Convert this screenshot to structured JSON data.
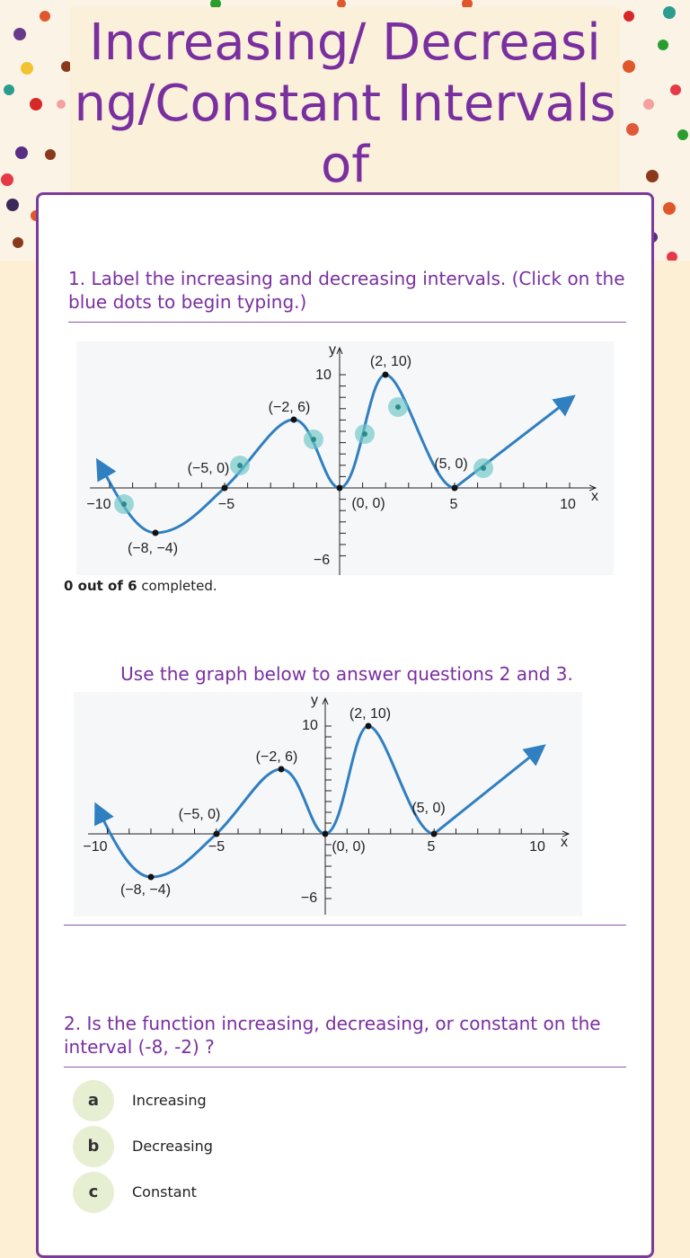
{
  "header": {
    "title": "Increasing/ Decreasing/Constant Intervals of"
  },
  "question1": {
    "prompt": "1.  Label the increasing and decreasing intervals.  (Click on the blue dots to begin typing.)",
    "progress_count": "0 out of 6",
    "progress_suffix": "completed."
  },
  "graph": {
    "labels": [
      "y",
      "10",
      "(2, 10)",
      "(−2, 6)",
      "(−5, 0)",
      "(5, 0)",
      "−10",
      "−5",
      "(0, 0)",
      "5",
      "10",
      "x",
      "(−8, −4)",
      "−6"
    ]
  },
  "instruction": "Use the graph below to answer questions 2 and 3.",
  "question2": {
    "prompt": "2. Is the function increasing, decreasing, or constant on the interval (-8, -2) ?",
    "options": [
      {
        "letter": "a",
        "text": "Increasing"
      },
      {
        "letter": "b",
        "text": "Decreasing"
      },
      {
        "letter": "c",
        "text": "Constant"
      }
    ]
  }
}
